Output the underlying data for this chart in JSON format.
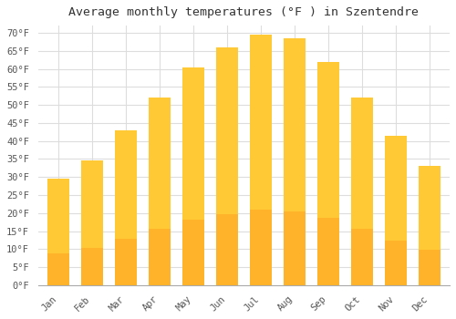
{
  "title": "Average monthly temperatures (°F ) in Szentendre",
  "months": [
    "Jan",
    "Feb",
    "Mar",
    "Apr",
    "May",
    "Jun",
    "Jul",
    "Aug",
    "Sep",
    "Oct",
    "Nov",
    "Dec"
  ],
  "values": [
    29.5,
    34.5,
    43.0,
    52.0,
    60.5,
    66.0,
    69.5,
    68.5,
    62.0,
    52.0,
    41.5,
    33.0
  ],
  "bar_color_top": "#FFC835",
  "bar_color_bottom": "#FFA020",
  "bar_edge_color": "none",
  "background_color": "#FFFFFF",
  "grid_color": "#DDDDDD",
  "ylim": [
    0,
    72
  ],
  "title_fontsize": 9.5,
  "tick_fontsize": 7.5,
  "font_family": "monospace"
}
